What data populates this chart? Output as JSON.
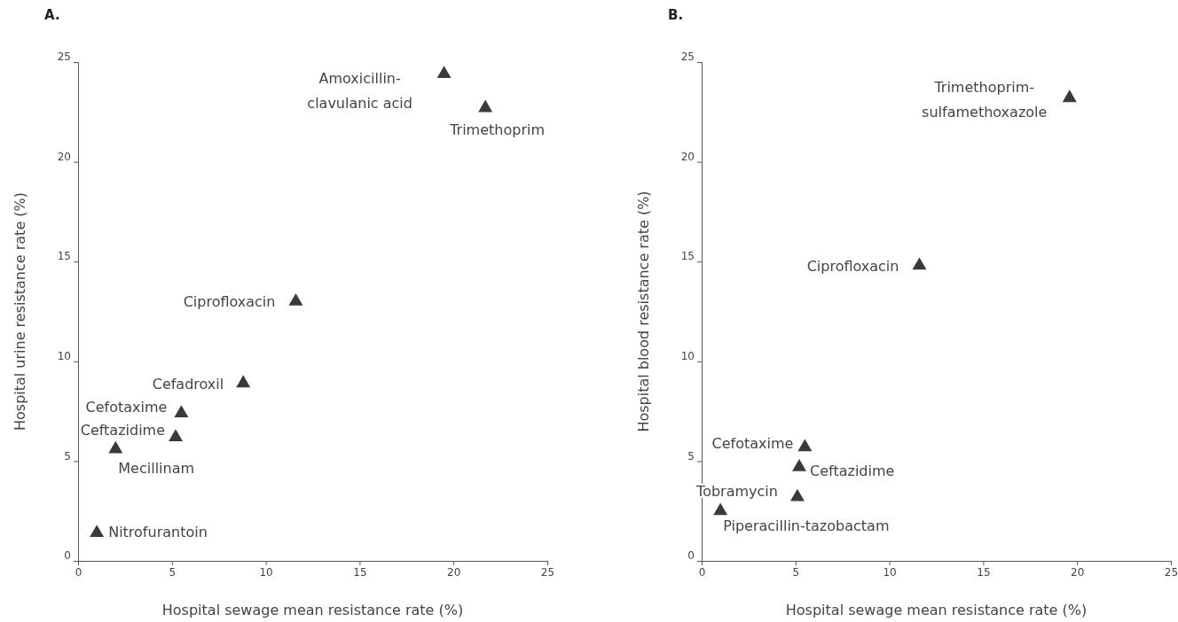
{
  "chart_data": [
    {
      "type": "scatter",
      "title": "A.",
      "xlabel": "Hospital sewage mean resistance rate (%)",
      "ylabel": "Hospital urine resistance rate (%)",
      "xlim": [
        0,
        25
      ],
      "xticks": [
        0,
        5,
        10,
        15,
        20,
        25
      ],
      "ylim": [
        0,
        25
      ],
      "yticks": [
        0,
        5,
        10,
        15,
        20,
        25
      ],
      "marker": "triangle",
      "series": [
        {
          "color": "#3a3a3a",
          "x": [
            19.5,
            21.7,
            11.6,
            8.8,
            5.5,
            5.2,
            2.0,
            1.0
          ],
          "values": [
            24.4,
            22.7,
            13.0,
            8.9,
            7.4,
            6.2,
            5.6,
            1.4
          ]
        }
      ],
      "annotations": [
        {
          "text": "Amoxicillin-clavulanic acid",
          "x": 19.5,
          "y": 24.4
        },
        {
          "text": "Trimethoprim",
          "x": 21.7,
          "y": 22.7
        },
        {
          "text": "Ciprofloxacin",
          "x": 11.6,
          "y": 13.0
        },
        {
          "text": "Cefadroxil",
          "x": 8.8,
          "y": 8.9
        },
        {
          "text": "Cefotaxime",
          "x": 5.5,
          "y": 7.4
        },
        {
          "text": "Ceftazidime",
          "x": 5.2,
          "y": 6.2
        },
        {
          "text": "Mecillinam",
          "x": 2.0,
          "y": 5.6
        },
        {
          "text": "Nitrofurantoin",
          "x": 1.0,
          "y": 1.4
        }
      ]
    },
    {
      "type": "scatter",
      "title": "B.",
      "xlabel": "Hospital sewage mean resistance rate (%)",
      "ylabel": "Hospital blood resistance rate (%)",
      "xlim": [
        0,
        25
      ],
      "xticks": [
        0,
        5,
        10,
        15,
        20,
        25
      ],
      "ylim": [
        0,
        25
      ],
      "yticks": [
        0,
        5,
        10,
        15,
        20,
        25
      ],
      "marker": "triangle",
      "series": [
        {
          "color": "#3a3a3a",
          "x": [
            19.6,
            11.6,
            5.5,
            5.2,
            5.1,
            1.0
          ],
          "values": [
            23.2,
            14.8,
            5.7,
            4.7,
            3.2,
            2.5
          ]
        }
      ],
      "annotations": [
        {
          "text": "Trimethoprim-sulfamethoxazole",
          "x": 19.6,
          "y": 23.2
        },
        {
          "text": "Ciprofloxacin",
          "x": 11.6,
          "y": 14.8
        },
        {
          "text": "Cefotaxime",
          "x": 5.5,
          "y": 5.7
        },
        {
          "text": "Ceftazidime",
          "x": 5.2,
          "y": 4.7
        },
        {
          "text": "Tobramycin",
          "x": 5.1,
          "y": 3.2
        },
        {
          "text": "Piperacillin-tazobactam",
          "x": 1.0,
          "y": 2.5
        }
      ]
    }
  ]
}
